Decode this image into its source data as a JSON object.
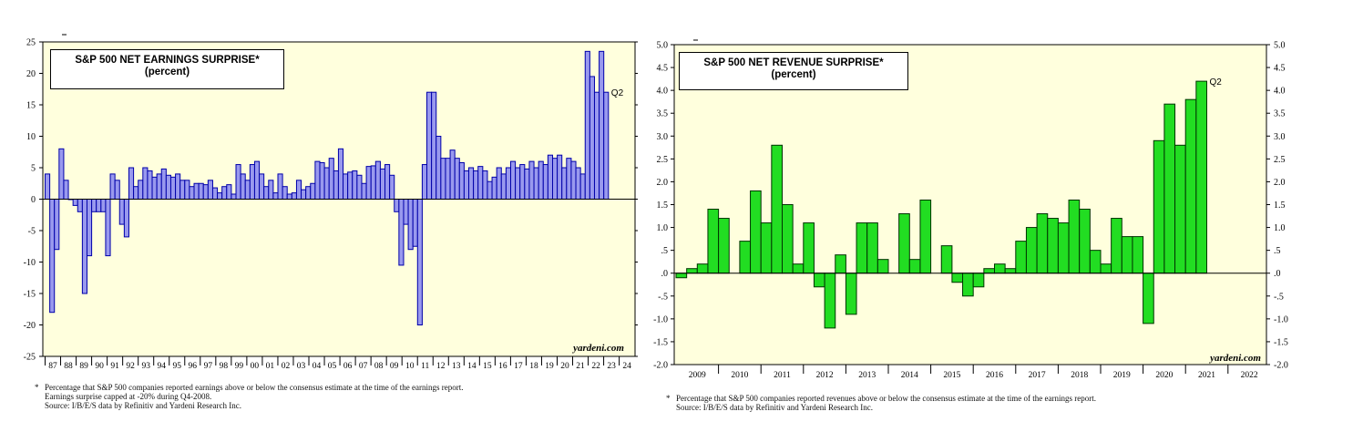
{
  "chart_data": [
    {
      "type": "bar",
      "title": "S&P 500 NET EARNINGS SURPRISE*",
      "subtitle": "(percent)",
      "ylim": [
        -25,
        25
      ],
      "yticks": [
        "25",
        "20",
        "15",
        "10",
        "5",
        "0",
        "-5",
        "-10",
        "-15",
        "-20",
        "-25"
      ],
      "ytick_values": [
        25,
        20,
        15,
        10,
        5,
        0,
        -5,
        -10,
        -15,
        -20,
        -25
      ],
      "xlabels": [
        "87",
        "88",
        "89",
        "90",
        "91",
        "92",
        "93",
        "94",
        "95",
        "96",
        "97",
        "98",
        "99",
        "00",
        "01",
        "02",
        "03",
        "04",
        "05",
        "06",
        "07",
        "08",
        "09",
        "10",
        "11",
        "12",
        "13",
        "14",
        "15",
        "16",
        "17",
        "18",
        "19",
        "20",
        "21",
        "22",
        "23",
        "24"
      ],
      "start_label": "87",
      "values": [
        4,
        -18,
        -8,
        8,
        3,
        0,
        -1,
        -2,
        -15,
        -9,
        -2,
        -2,
        -2,
        -9,
        4,
        3,
        -4,
        -6,
        5,
        2,
        3,
        5,
        4.5,
        3.5,
        4,
        4.8,
        3.8,
        3.5,
        4,
        3,
        3,
        2,
        2.5,
        2.5,
        2.3,
        3,
        1.8,
        1,
        2,
        2.3,
        0.8,
        5.5,
        4,
        3,
        5.5,
        6,
        4,
        2,
        3,
        1,
        4,
        2,
        0.8,
        1,
        3,
        1.5,
        2,
        2.5,
        6,
        5.8,
        5,
        6.5,
        4.5,
        8,
        4,
        4.3,
        4.5,
        3.8,
        2.5,
        5.2,
        5.3,
        6,
        4.8,
        5.5,
        3.8,
        -2,
        -10.5,
        -4,
        -8,
        -7.5,
        -20,
        5.5,
        17,
        17,
        10,
        6.5,
        6.5,
        7.8,
        6.5,
        5.8,
        4.5,
        5,
        4.5,
        5.2,
        4.5,
        2.8,
        3.5,
        5,
        4,
        5,
        6,
        5,
        5.5,
        4.8,
        6,
        5,
        6,
        5.5,
        7,
        6.5,
        7,
        5,
        6.5,
        6,
        5,
        4,
        23.5,
        19.5,
        17,
        23.5,
        17
      ],
      "annotation": "Q2",
      "watermark": "yardeni.com",
      "bar_color": "#9999ee",
      "bar_stroke": "#0000aa",
      "bg_color": "#ffffdd",
      "footnotes": [
        "Percentage that S&P 500 companies reported earnings above or below the consensus estimate at the time of the earnings report.",
        "Earnings surprise capped at -20% during Q4-2008.",
        "Source: I/B/E/S data by Refinitiv and Yardeni Research Inc."
      ],
      "footnote_mark": "*"
    },
    {
      "type": "bar",
      "title": "S&P 500 NET REVENUE SURPRISE*",
      "subtitle": "(percent)",
      "ylim": [
        -2.0,
        5.0
      ],
      "yticks": [
        "5.0",
        "4.5",
        "4.0",
        "3.5",
        "3.0",
        "2.5",
        "2.0",
        "1.5",
        "1.0",
        ".5",
        ".0",
        "-.5",
        "-1.0",
        "-1.5",
        "-2.0"
      ],
      "ytick_values": [
        5.0,
        4.5,
        4.0,
        3.5,
        3.0,
        2.5,
        2.0,
        1.5,
        1.0,
        0.5,
        0.0,
        -0.5,
        -1.0,
        -1.5,
        -2.0
      ],
      "xlabels": [
        "2009",
        "2010",
        "2011",
        "2012",
        "2013",
        "2014",
        "2015",
        "2016",
        "2017",
        "2018",
        "2019",
        "2020",
        "2021",
        "2022"
      ],
      "start_label": "2009",
      "values": [
        -0.1,
        0.1,
        0.2,
        1.4,
        1.2,
        null,
        0.7,
        1.8,
        1.1,
        2.8,
        1.5,
        0.2,
        1.1,
        -0.3,
        -1.2,
        0.4,
        -0.9,
        1.1,
        1.1,
        0.3,
        null,
        1.3,
        0.3,
        1.6,
        null,
        0.6,
        -0.2,
        -0.5,
        -0.3,
        0.1,
        0.2,
        0.1,
        0.7,
        1.0,
        1.3,
        1.2,
        1.1,
        1.6,
        1.4,
        0.5,
        0.2,
        1.2,
        0.8,
        0.8,
        -1.1,
        2.9,
        3.7,
        2.8,
        3.8,
        4.2
      ],
      "annotation": "Q2",
      "watermark": "yardeni.com",
      "bar_color": "#22dd22",
      "bar_stroke": "#003300",
      "bg_color": "#ffffdd",
      "footnotes": [
        "Percentage that S&P 500 companies reported revenues above or below the consensus estimate at the time of the earnings report.",
        "Source: I/B/E/S data by Refinitiv and Yardeni Research Inc."
      ],
      "footnote_mark": "*"
    }
  ]
}
